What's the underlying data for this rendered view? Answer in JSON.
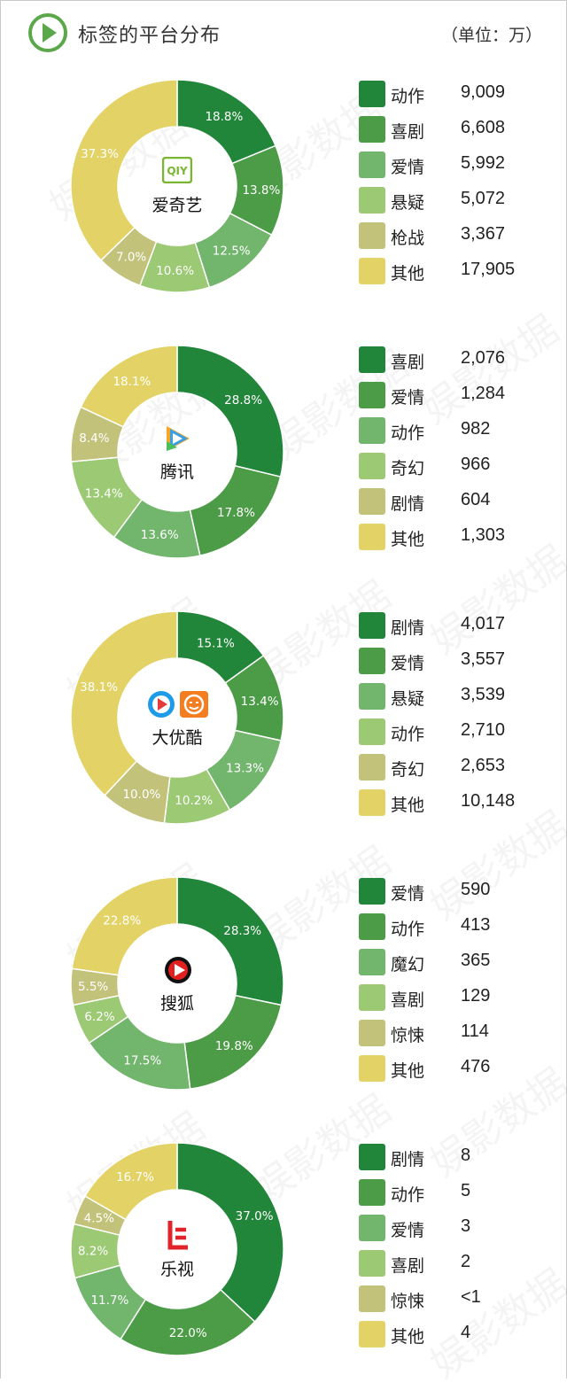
{
  "header": {
    "title": "标签的平台分布",
    "unit": "（单位：万）"
  },
  "colors": [
    "#22863a",
    "#4c9c47",
    "#72b56d",
    "#9cc973",
    "#c3c27b",
    "#e3d366"
  ],
  "chart_data": [
    {
      "type": "pie",
      "platform": "爱奇艺",
      "logo": "iqiyi-logo",
      "categories": [
        "动作",
        "喜剧",
        "爱情",
        "悬疑",
        "枪战",
        "其他"
      ],
      "values": [
        "9,009",
        "6,608",
        "5,992",
        "5,072",
        "3,367",
        "17,905"
      ],
      "percents": [
        18.8,
        13.8,
        12.5,
        10.6,
        7.0,
        37.3
      ],
      "percent_labels": [
        "18.8%",
        "13.8%",
        "12.5%",
        "10.6%",
        "7.0%",
        "37.3%"
      ]
    },
    {
      "type": "pie",
      "platform": "腾讯",
      "logo": "tencent-video-logo",
      "categories": [
        "喜剧",
        "爱情",
        "动作",
        "奇幻",
        "剧情",
        "其他"
      ],
      "values": [
        "2,076",
        "1,284",
        "982",
        "966",
        "604",
        "1,303"
      ],
      "percents": [
        28.8,
        17.8,
        13.6,
        13.4,
        8.4,
        18.1
      ],
      "percent_labels": [
        "28.8%",
        "17.8%",
        "13.6%",
        "13.4%",
        "8.4%",
        "18.1%"
      ]
    },
    {
      "type": "pie",
      "platform": "大优酷",
      "logo": "youku-tudou-logo",
      "categories": [
        "剧情",
        "爱情",
        "悬疑",
        "动作",
        "奇幻",
        "其他"
      ],
      "values": [
        "4,017",
        "3,557",
        "3,539",
        "2,710",
        "2,653",
        "10,148"
      ],
      "percents": [
        15.1,
        13.4,
        13.3,
        10.2,
        10.0,
        38.1
      ],
      "percent_labels": [
        "15.1%",
        "13.4%",
        "13.3%",
        "10.2%",
        "10.0%",
        "38.1%"
      ]
    },
    {
      "type": "pie",
      "platform": "搜狐",
      "logo": "sohu-video-logo",
      "categories": [
        "爱情",
        "动作",
        "魔幻",
        "喜剧",
        "惊悚",
        "其他"
      ],
      "values": [
        "590",
        "413",
        "365",
        "129",
        "114",
        "476"
      ],
      "percents": [
        28.3,
        19.8,
        17.5,
        6.2,
        5.5,
        22.8
      ],
      "percent_labels": [
        "28.3%",
        "19.8%",
        "17.5%",
        "6.2%",
        "5.5%",
        "22.8%"
      ]
    },
    {
      "type": "pie",
      "platform": "乐视",
      "logo": "letv-logo",
      "categories": [
        "剧情",
        "动作",
        "爱情",
        "喜剧",
        "惊悚",
        "其他"
      ],
      "values": [
        "8",
        "5",
        "3",
        "2",
        "<1",
        "4"
      ],
      "percents": [
        37.0,
        22.0,
        11.7,
        8.2,
        4.5,
        16.7
      ],
      "percent_labels": [
        "37.0%",
        "22.0%",
        "11.7%",
        "8.2%",
        "4.5%",
        "16.7%"
      ]
    }
  ]
}
